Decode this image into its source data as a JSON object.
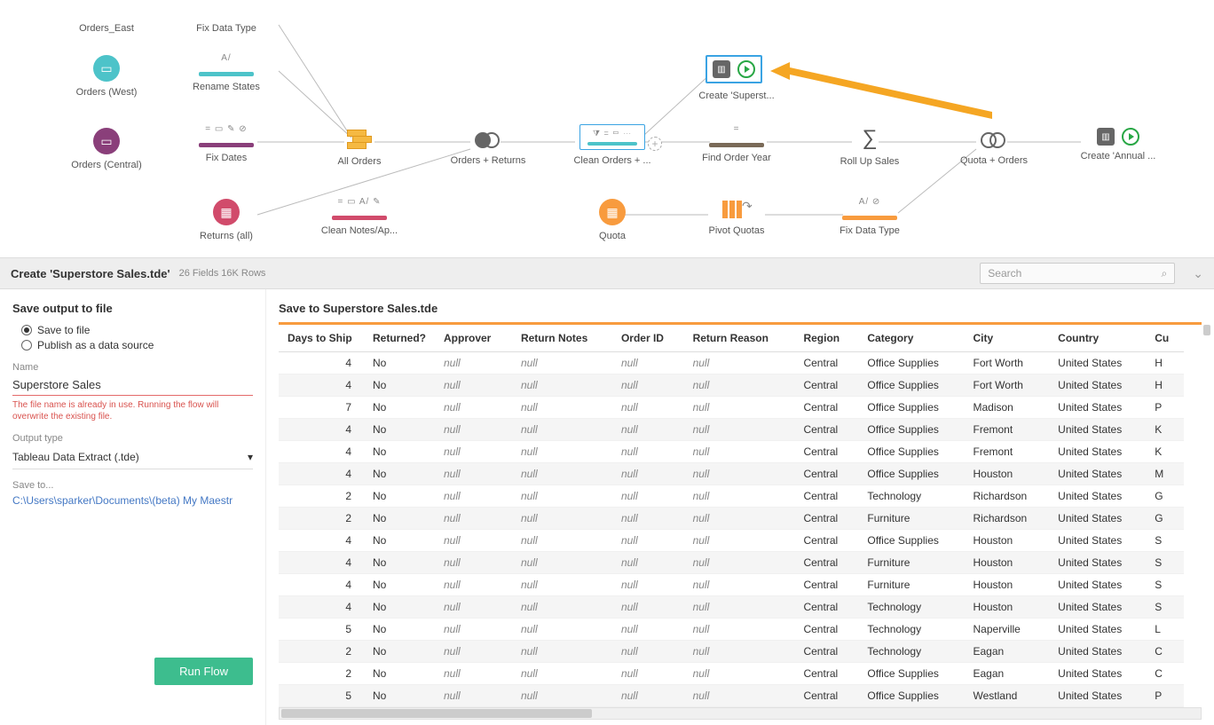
{
  "flow": {
    "nodes": {
      "orders_east": {
        "label": "Orders_East"
      },
      "orders_west": {
        "label": "Orders (West)",
        "icon_bg": "#4dc3c9"
      },
      "orders_central": {
        "label": "Orders (Central)",
        "icon_bg": "#8a3f7a"
      },
      "returns_all": {
        "label": "Returns (all)",
        "icon_bg": "#d14b6b"
      },
      "quota": {
        "label": "Quota",
        "icon_bg": "#f89b3e"
      },
      "fix_data_type_top": {
        "label": "Fix Data Type"
      },
      "rename_states": {
        "label": "Rename States",
        "mini": "A/",
        "bar": "#4dc3c9"
      },
      "fix_dates": {
        "label": "Fix Dates",
        "mini": "= ▭ ✎ ⊘",
        "bar": "#8a3f7a"
      },
      "clean_notes": {
        "label": "Clean Notes/Ap...",
        "mini": "= ▭ A/ ✎",
        "bar": "#d14b6b"
      },
      "all_orders": {
        "label": "All Orders"
      },
      "orders_returns": {
        "label": "Orders + Returns"
      },
      "clean_orders": {
        "label": "Clean Orders + ...",
        "mini": "⧩ = ▭ ⋯",
        "bar": "#4dc3c9"
      },
      "find_order_year": {
        "label": "Find Order Year",
        "mini": "=",
        "bar": "#7a6a58"
      },
      "roll_up_sales": {
        "label": "Roll Up Sales"
      },
      "quota_orders": {
        "label": "Quota + Orders"
      },
      "pivot_quotas": {
        "label": "Pivot Quotas"
      },
      "fix_data_type_bot": {
        "label": "Fix Data Type",
        "mini": "A/ ⊘",
        "bar": "#f89b3e"
      },
      "create_superst": {
        "label": "Create 'Superst..."
      },
      "create_annual": {
        "label": "Create 'Annual ..."
      }
    },
    "selected_label": "Create 'Superst..."
  },
  "detail": {
    "title": "Create 'Superstore Sales.tde'",
    "meta": "26 Fields  16K Rows",
    "search_placeholder": "Search"
  },
  "side": {
    "heading": "Save output to file",
    "opt_save": "Save to file",
    "opt_publish": "Publish as a data source",
    "name_label": "Name",
    "name_value": "Superstore Sales",
    "name_error": "The file name is already in use. Running the flow will overwrite the existing file.",
    "output_type_label": "Output type",
    "output_type_value": "Tableau Data Extract (.tde)",
    "save_to_label": "Save to...",
    "save_to_value": "C:\\Users\\sparker\\Documents\\(beta) My Maestr",
    "run_label": "Run Flow"
  },
  "preview": {
    "heading": "Save to Superstore Sales.tde",
    "columns": [
      "Days to Ship",
      "Returned?",
      "Approver",
      "Return Notes",
      "Order ID",
      "Return Reason",
      "Region",
      "Category",
      "City",
      "Country",
      "Cu"
    ],
    "rows": [
      [
        "4",
        "No",
        "null",
        "null",
        "null",
        "null",
        "Central",
        "Office Supplies",
        "Fort Worth",
        "United States",
        "H"
      ],
      [
        "4",
        "No",
        "null",
        "null",
        "null",
        "null",
        "Central",
        "Office Supplies",
        "Fort Worth",
        "United States",
        "H"
      ],
      [
        "7",
        "No",
        "null",
        "null",
        "null",
        "null",
        "Central",
        "Office Supplies",
        "Madison",
        "United States",
        "P"
      ],
      [
        "4",
        "No",
        "null",
        "null",
        "null",
        "null",
        "Central",
        "Office Supplies",
        "Fremont",
        "United States",
        "K"
      ],
      [
        "4",
        "No",
        "null",
        "null",
        "null",
        "null",
        "Central",
        "Office Supplies",
        "Fremont",
        "United States",
        "K"
      ],
      [
        "4",
        "No",
        "null",
        "null",
        "null",
        "null",
        "Central",
        "Office Supplies",
        "Houston",
        "United States",
        "M"
      ],
      [
        "2",
        "No",
        "null",
        "null",
        "null",
        "null",
        "Central",
        "Technology",
        "Richardson",
        "United States",
        "G"
      ],
      [
        "2",
        "No",
        "null",
        "null",
        "null",
        "null",
        "Central",
        "Furniture",
        "Richardson",
        "United States",
        "G"
      ],
      [
        "4",
        "No",
        "null",
        "null",
        "null",
        "null",
        "Central",
        "Office Supplies",
        "Houston",
        "United States",
        "S"
      ],
      [
        "4",
        "No",
        "null",
        "null",
        "null",
        "null",
        "Central",
        "Furniture",
        "Houston",
        "United States",
        "S"
      ],
      [
        "4",
        "No",
        "null",
        "null",
        "null",
        "null",
        "Central",
        "Furniture",
        "Houston",
        "United States",
        "S"
      ],
      [
        "4",
        "No",
        "null",
        "null",
        "null",
        "null",
        "Central",
        "Technology",
        "Houston",
        "United States",
        "S"
      ],
      [
        "5",
        "No",
        "null",
        "null",
        "null",
        "null",
        "Central",
        "Technology",
        "Naperville",
        "United States",
        "L"
      ],
      [
        "2",
        "No",
        "null",
        "null",
        "null",
        "null",
        "Central",
        "Technology",
        "Eagan",
        "United States",
        "C"
      ],
      [
        "2",
        "No",
        "null",
        "null",
        "null",
        "null",
        "Central",
        "Office Supplies",
        "Eagan",
        "United States",
        "C"
      ],
      [
        "5",
        "No",
        "null",
        "null",
        "null",
        "null",
        "Central",
        "Office Supplies",
        "Westland",
        "United States",
        "P"
      ]
    ]
  },
  "colors": {
    "orange": "#f89b3e",
    "teal": "#4dc3c9",
    "purple": "#8a3f7a",
    "pink": "#d14b6b",
    "brown": "#7a6a58",
    "blue_sel": "#3aa3e3",
    "green": "#3dbd8e"
  }
}
